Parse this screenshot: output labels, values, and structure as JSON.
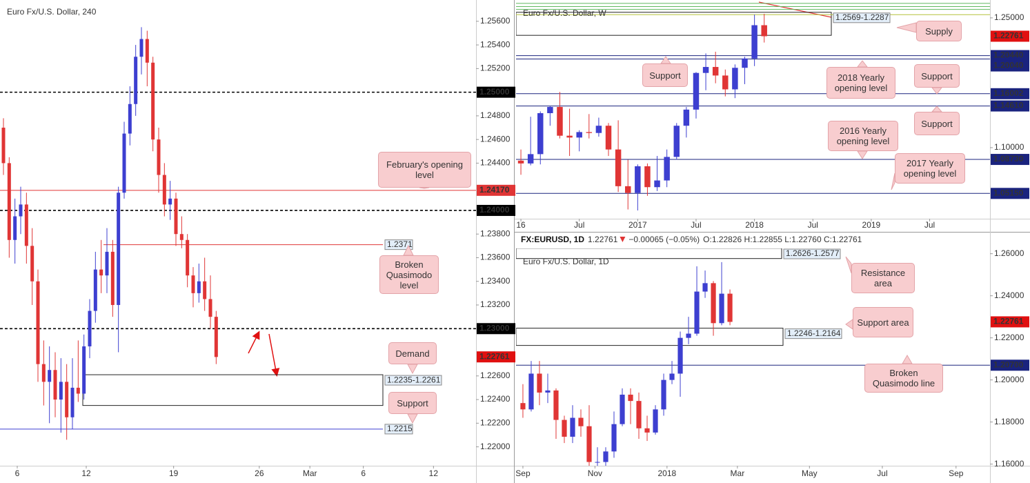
{
  "chart_data": [
    {
      "type": "candlestick",
      "title": "Euro Fx/U.S. Dollar, 240",
      "log_scale": false,
      "up_color": "#3d3fd0",
      "down_color": "#e03535",
      "xlim": [
        -0.6,
        82.2
      ],
      "ylim": [
        1.2184,
        1.2578
      ],
      "xticks": [
        {
          "value": 2.4,
          "label": "6"
        },
        {
          "value": 14.4,
          "label": "12"
        },
        {
          "value": 29.6,
          "label": "19"
        },
        {
          "value": 44.5,
          "label": "26"
        },
        {
          "value": 53.3,
          "label": "Mar"
        },
        {
          "value": 62.6,
          "label": "6"
        },
        {
          "value": 74.8,
          "label": "12"
        }
      ],
      "yticks": [
        {
          "value": 1.256,
          "label": "1.25600"
        },
        {
          "value": 1.254,
          "label": "1.25400"
        },
        {
          "value": 1.252,
          "label": "1.25200"
        },
        {
          "value": 1.248,
          "label": "1.24800"
        },
        {
          "value": 1.246,
          "label": "1.24600"
        },
        {
          "value": 1.244,
          "label": "1.24400"
        },
        {
          "value": 1.238,
          "label": "1.23800"
        },
        {
          "value": 1.236,
          "label": "1.23600"
        },
        {
          "value": 1.234,
          "label": "1.23400"
        },
        {
          "value": 1.232,
          "label": "1.23200"
        },
        {
          "value": 1.226,
          "label": "1.22600"
        },
        {
          "value": 1.224,
          "label": "1.22400"
        },
        {
          "value": 1.222,
          "label": "1.22200"
        },
        {
          "value": 1.22,
          "label": "1.22000"
        }
      ],
      "open": [
        1.247,
        1.244,
        1.2375,
        1.2395,
        1.2405,
        1.237,
        1.234,
        1.227,
        1.2255,
        1.2265,
        1.224,
        1.2255,
        1.2225,
        1.225,
        1.2245,
        1.2285,
        1.2315,
        1.235,
        1.2345,
        1.2365,
        1.232,
        1.2415,
        1.2465,
        1.249,
        1.253,
        1.2545,
        1.2525,
        1.246,
        1.243,
        1.2405,
        1.241,
        1.238,
        1.2375,
        1.2345,
        1.233,
        1.234,
        1.2325,
        1.231
      ],
      "high": [
        1.2478,
        1.2445,
        1.241,
        1.242,
        1.2415,
        1.2385,
        1.235,
        1.229,
        1.2285,
        1.228,
        1.2275,
        1.227,
        1.2275,
        1.229,
        1.2295,
        1.2325,
        1.2365,
        1.2375,
        1.2385,
        1.2375,
        1.242,
        1.2475,
        1.2505,
        1.254,
        1.2555,
        1.2552,
        1.253,
        1.247,
        1.244,
        1.2425,
        1.2415,
        1.2395,
        1.238,
        1.2352,
        1.2355,
        1.236,
        1.2345,
        1.2315
      ],
      "low": [
        1.243,
        1.236,
        1.2355,
        1.238,
        1.2355,
        1.232,
        1.2255,
        1.2235,
        1.222,
        1.2225,
        1.2212,
        1.2206,
        1.2215,
        1.2238,
        1.224,
        1.2275,
        1.2305,
        1.233,
        1.233,
        1.231,
        1.228,
        1.241,
        1.2455,
        1.248,
        1.2515,
        1.2505,
        1.245,
        1.2415,
        1.2395,
        1.2392,
        1.237,
        1.2368,
        1.2335,
        1.2318,
        1.2322,
        1.2315,
        1.23,
        1.227
      ],
      "close": [
        1.244,
        1.2375,
        1.2395,
        1.2405,
        1.237,
        1.234,
        1.227,
        1.2255,
        1.2265,
        1.224,
        1.2255,
        1.2225,
        1.225,
        1.2245,
        1.2285,
        1.2315,
        1.235,
        1.2345,
        1.2365,
        1.232,
        1.2415,
        1.2465,
        1.249,
        1.253,
        1.2545,
        1.2525,
        1.246,
        1.243,
        1.2405,
        1.241,
        1.238,
        1.2375,
        1.2345,
        1.233,
        1.234,
        1.2325,
        1.231,
        1.2276
      ],
      "levels": [
        {
          "value": 1.25,
          "label": "1.25000",
          "color": "#000000",
          "dash": true,
          "tag": "axis"
        },
        {
          "value": 1.2417,
          "label": "1.24170",
          "color": "#e03535",
          "dash": false,
          "tag": "axis"
        },
        {
          "value": 1.24,
          "label": "1.24000",
          "color": "#000000",
          "dash": true,
          "tag": "axis"
        },
        {
          "value": 1.23,
          "label": "1.23000",
          "color": "#000000",
          "dash": true,
          "tag": "axis"
        },
        {
          "value": 1.2371,
          "color": "#e03535",
          "dash": false,
          "tag": "box"
        },
        {
          "value": 1.2215,
          "color": "#3d3fd0",
          "dash": false,
          "tag": "box"
        }
      ],
      "zones": [
        {
          "label": "1.2235-1.2261",
          "low": 1.2235,
          "high": 1.2261
        }
      ],
      "annotations": [
        "February's opening level",
        "Broken Quasimodo level",
        "Demand",
        "Support"
      ],
      "last_price": 1.22761
    },
    {
      "type": "candlestick",
      "title": "Euro Fx/U.S. Dollar, W",
      "log_scale": true,
      "up_color": "#3d3fd0",
      "down_color": "#e03535",
      "xlim": [
        -0.5,
        48.2
      ],
      "ylim": [
        1.0256,
        1.2722
      ],
      "xticks": [
        {
          "value": 0,
          "label": "16"
        },
        {
          "value": 6,
          "label": "Jul"
        },
        {
          "value": 12,
          "label": "2017"
        },
        {
          "value": 18,
          "label": "Jul"
        },
        {
          "value": 24,
          "label": "2018"
        },
        {
          "value": 30,
          "label": "Jul"
        },
        {
          "value": 36,
          "label": "2019"
        },
        {
          "value": 42,
          "label": "Jul"
        }
      ],
      "yticks": [
        {
          "value": 1.25,
          "label": "1.25000"
        },
        {
          "value": 1.1,
          "label": "1.10000"
        }
      ],
      "open": [
        1.086,
        1.083,
        1.093,
        1.138,
        1.145,
        1.113,
        1.111,
        1.117,
        1.116,
        1.124,
        1.098,
        1.059,
        1.052,
        1.08,
        1.058,
        1.065,
        1.09,
        1.124,
        1.142,
        1.184,
        1.191,
        1.181,
        1.165,
        1.19,
        1.201,
        1.241
      ],
      "high": [
        1.098,
        1.134,
        1.14,
        1.146,
        1.162,
        1.143,
        1.119,
        1.137,
        1.133,
        1.127,
        1.13,
        1.087,
        1.082,
        1.083,
        1.091,
        1.098,
        1.127,
        1.145,
        1.185,
        1.207,
        1.209,
        1.188,
        1.194,
        1.203,
        1.254,
        1.255
      ],
      "low": [
        1.071,
        1.081,
        1.082,
        1.124,
        1.11,
        1.091,
        1.096,
        1.11,
        1.112,
        1.091,
        1.053,
        1.035,
        1.034,
        1.049,
        1.054,
        1.058,
        1.087,
        1.111,
        1.132,
        1.164,
        1.172,
        1.157,
        1.155,
        1.171,
        1.192,
        1.22
      ],
      "close": [
        1.083,
        1.093,
        1.138,
        1.145,
        1.113,
        1.111,
        1.117,
        1.116,
        1.124,
        1.098,
        1.059,
        1.052,
        1.08,
        1.058,
        1.065,
        1.09,
        1.124,
        1.142,
        1.184,
        1.191,
        1.181,
        1.165,
        1.19,
        1.201,
        1.241,
        1.2276
      ],
      "levels": [
        {
          "value": 1.268,
          "color": "#5fb85f",
          "dash": false,
          "tag": "none"
        },
        {
          "value": 1.264,
          "color": "#5fb85f",
          "dash": false,
          "tag": "none"
        },
        {
          "value": 1.2605,
          "color": "#5fb85f",
          "dash": false,
          "tag": "none"
        },
        {
          "value": 1.254,
          "color": "#b5c23a",
          "dash": false,
          "tag": "none"
        },
        {
          "value": 1.2044,
          "label": "1.20440",
          "color": "#1a237e",
          "dash": false,
          "tag": "axis"
        },
        {
          "value": 1.2004,
          "label": "1.20040",
          "color": "#1a237e",
          "dash": false,
          "tag": "axis"
        },
        {
          "value": 1.16002,
          "color": "#1a237e",
          "dash": false,
          "tag": "axis"
        },
        {
          "value": 1.1461,
          "label": "1.14610",
          "color": "#1a237e",
          "dash": false,
          "tag": "axis"
        },
        {
          "value": 1.0873,
          "label": "1.08730",
          "color": "#1a237e",
          "dash": false,
          "tag": "axis"
        },
        {
          "value": 1.0515,
          "label": "1.05150",
          "color": "#1a237e",
          "dash": false,
          "tag": "axis"
        }
      ],
      "zones": [
        {
          "label": "1.2569-1.2287",
          "low": 1.2287,
          "high": 1.2569
        }
      ],
      "annotations": [
        "Supply",
        "Support",
        "2018 Yearly opening level",
        "Support",
        "Support",
        "2016 Yearly opening level",
        "2017 Yearly opening level"
      ],
      "last_price": 1.22761
    },
    {
      "type": "candlestick",
      "title": "Euro Fx/U.S. Dollar, 1D",
      "log_scale": false,
      "header": {
        "symbol": "FX:EURUSD, 1D",
        "last": "1.22761",
        "change": "−0.00065 (−0.05%)",
        "ohlc": "O:1.22826 H:1.22855 L:1.22760 C:1.22761"
      },
      "up_color": "#3d3fd0",
      "down_color": "#e03535",
      "xlim": [
        -0.83,
        56.4
      ],
      "ylim": [
        1.15921,
        1.26252
      ],
      "xticks": [
        {
          "value": 0,
          "label": "Sep"
        },
        {
          "value": 8.7,
          "label": "Nov"
        },
        {
          "value": 17.4,
          "label": "2018"
        },
        {
          "value": 25.9,
          "label": "Mar"
        },
        {
          "value": 34.6,
          "label": "May"
        },
        {
          "value": 43.4,
          "label": "Jul"
        },
        {
          "value": 52.3,
          "label": "Sep"
        }
      ],
      "yticks": [
        {
          "value": 1.26,
          "label": "1.26000"
        },
        {
          "value": 1.24,
          "label": "1.24000"
        },
        {
          "value": 1.22,
          "label": "1.22000"
        },
        {
          "value": 1.2,
          "label": "1.20000"
        },
        {
          "value": 1.18,
          "label": "1.18000"
        },
        {
          "value": 1.16,
          "label": "1.16000"
        }
      ],
      "open": [
        1.189,
        1.186,
        1.203,
        1.194,
        1.195,
        1.181,
        1.173,
        1.182,
        1.178,
        1.161,
        1.161,
        1.166,
        1.179,
        1.193,
        1.19,
        1.177,
        1.175,
        1.186,
        1.2,
        1.203,
        1.22,
        1.222,
        1.242,
        1.246,
        1.227,
        1.241
      ],
      "high": [
        1.198,
        1.209,
        1.209,
        1.203,
        1.196,
        1.183,
        1.188,
        1.186,
        1.188,
        1.168,
        1.168,
        1.185,
        1.196,
        1.196,
        1.194,
        1.183,
        1.188,
        1.203,
        1.209,
        1.223,
        1.23,
        1.254,
        1.252,
        1.247,
        1.256,
        1.243
      ],
      "low": [
        1.182,
        1.185,
        1.188,
        1.189,
        1.172,
        1.17,
        1.17,
        1.173,
        1.157,
        1.155,
        1.155,
        1.163,
        1.178,
        1.179,
        1.172,
        1.171,
        1.174,
        1.183,
        1.198,
        1.192,
        1.217,
        1.221,
        1.239,
        1.221,
        1.226,
        1.226
      ],
      "close": [
        1.186,
        1.203,
        1.194,
        1.195,
        1.181,
        1.173,
        1.182,
        1.178,
        1.161,
        1.161,
        1.166,
        1.179,
        1.193,
        1.19,
        1.177,
        1.175,
        1.186,
        1.2,
        1.203,
        1.22,
        1.222,
        1.242,
        1.246,
        1.227,
        1.241,
        1.2276
      ],
      "levels": [
        {
          "value": 1.207,
          "label": "1.20700",
          "color": "#1a237e",
          "dash": false,
          "tag": "axis"
        }
      ],
      "zones": [
        {
          "label": "1.2626-1.2577",
          "low": 1.2577,
          "high": 1.2626
        },
        {
          "label": "1.2246-1.2164",
          "low": 1.2164,
          "high": 1.2246
        }
      ],
      "annotations": [
        "Resistance area",
        "Support area",
        "Broken Quasimodo line"
      ],
      "last_price": 1.22761
    }
  ]
}
